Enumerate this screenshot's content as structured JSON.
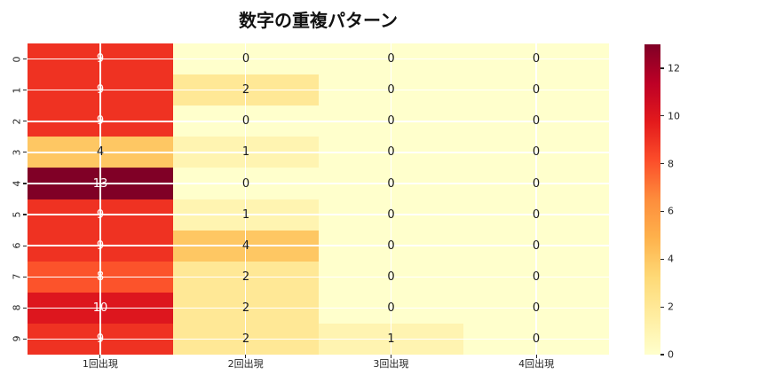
{
  "chart_data": {
    "type": "heatmap",
    "title": "数字の重複パターン",
    "row_labels": [
      "0",
      "1",
      "2",
      "3",
      "4",
      "5",
      "6",
      "7",
      "8",
      "9"
    ],
    "col_labels": [
      "1回出現",
      "2回出現",
      "3回出現",
      "4回出現"
    ],
    "matrix": [
      [
        9,
        0,
        0,
        0
      ],
      [
        9,
        2,
        0,
        0
      ],
      [
        9,
        0,
        0,
        0
      ],
      [
        4,
        1,
        0,
        0
      ],
      [
        13,
        0,
        0,
        0
      ],
      [
        9,
        1,
        0,
        0
      ],
      [
        9,
        4,
        0,
        0
      ],
      [
        8,
        2,
        0,
        0
      ],
      [
        10,
        2,
        0,
        0
      ],
      [
        9,
        2,
        1,
        0
      ]
    ],
    "vmin": 0,
    "vmax": 13,
    "colormap": "YlOrRd",
    "colormap_stops": [
      [
        0.0,
        "#ffffcc"
      ],
      [
        0.125,
        "#ffeda0"
      ],
      [
        0.25,
        "#fed976"
      ],
      [
        0.375,
        "#feb24c"
      ],
      [
        0.5,
        "#fd8d3c"
      ],
      [
        0.625,
        "#fc4e2a"
      ],
      [
        0.75,
        "#e31a1c"
      ],
      [
        0.875,
        "#bd0026"
      ],
      [
        1.0,
        "#800026"
      ]
    ],
    "colorbar_ticks": [
      0,
      2,
      4,
      6,
      8,
      10,
      12
    ],
    "grid_line_color": "#ffffff",
    "annotation_light_color": "#ffffff",
    "annotation_dark_color": "#1a1a1a",
    "tick_label_color": "#262626",
    "background_color": "#ffffff",
    "legend_position": "right-colorbar",
    "grid": "on"
  }
}
